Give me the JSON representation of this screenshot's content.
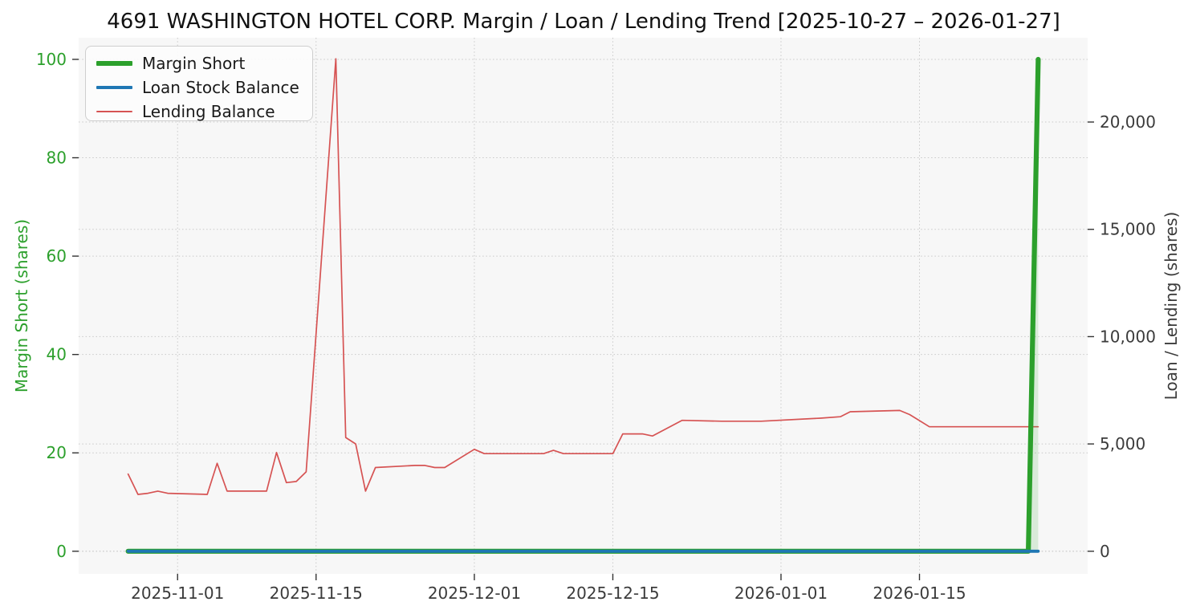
{
  "title": "4691 WASHINGTON HOTEL CORP. Margin / Loan / Lending Trend [2025-10-27 – 2026-01-27]",
  "chart_data": {
    "type": "line",
    "title": "4691 WASHINGTON HOTEL CORP. Margin / Loan / Lending Trend [2025-10-27 – 2026-01-27]",
    "date_range": {
      "start": "2025-10-27",
      "end": "2026-01-27"
    },
    "grid": "dotted gridlines on both y-axes and at x date ticks",
    "plot_background": "#f7f7f7",
    "x_domain": [
      "2025-10-22",
      "2026-02-01"
    ],
    "x_ticks": {
      "dates": [
        "2025-11-01",
        "2025-11-15",
        "2025-12-01",
        "2025-12-15",
        "2026-01-01",
        "2026-01-15"
      ],
      "labels": [
        "2025-11-01",
        "2025-11-15",
        "2025-12-01",
        "2025-12-15",
        "2026-01-01",
        "2026-01-15"
      ]
    },
    "left_axis": {
      "label": "Margin Short (shares)",
      "color": "#2ca02c",
      "range": [
        -4.6,
        104.4
      ],
      "ticks": [
        0,
        20,
        40,
        60,
        80,
        100
      ],
      "tick_labels": [
        "0",
        "20",
        "40",
        "60",
        "80",
        "100"
      ]
    },
    "right_axis": {
      "label": "Loan / Lending (shares)",
      "color": "#3b3b3b",
      "range": [
        -1054,
        23928
      ],
      "ticks": [
        0,
        5000,
        10000,
        15000,
        20000
      ],
      "tick_labels": [
        "0",
        "5,000",
        "10,000",
        "15,000",
        "20,000"
      ]
    },
    "legend": {
      "position": "upper left",
      "entries": [
        {
          "label": "Margin Short",
          "color": "#2ca02c",
          "sample_thickness": 6
        },
        {
          "label": "Loan Stock Balance",
          "color": "#1f77b4",
          "sample_thickness": 4.5
        },
        {
          "label": "Lending Balance",
          "color": "#d65353",
          "sample_thickness": 2
        }
      ]
    },
    "series": [
      {
        "name": "Lending Balance",
        "axis": "right",
        "color": "#d65353",
        "line_width": 1.7,
        "points": [
          [
            "2025-10-27",
            3600
          ],
          [
            "2025-10-28",
            2650
          ],
          [
            "2025-10-29",
            2700
          ],
          [
            "2025-10-30",
            2800
          ],
          [
            "2025-10-31",
            2700
          ],
          [
            "2025-11-04",
            2650
          ],
          [
            "2025-11-05",
            4100
          ],
          [
            "2025-11-06",
            2800
          ],
          [
            "2025-11-07",
            2800
          ],
          [
            "2025-11-10",
            2800
          ],
          [
            "2025-11-11",
            4600
          ],
          [
            "2025-11-12",
            3200
          ],
          [
            "2025-11-13",
            3250
          ],
          [
            "2025-11-14",
            3700
          ],
          [
            "2025-11-17",
            22950
          ],
          [
            "2025-11-18",
            5300
          ],
          [
            "2025-11-19",
            5000
          ],
          [
            "2025-11-20",
            2800
          ],
          [
            "2025-11-21",
            3900
          ],
          [
            "2025-11-25",
            4000
          ],
          [
            "2025-11-26",
            4000
          ],
          [
            "2025-11-27",
            3900
          ],
          [
            "2025-11-28",
            3900
          ],
          [
            "2025-12-01",
            4750
          ],
          [
            "2025-12-02",
            4550
          ],
          [
            "2025-12-05",
            4550
          ],
          [
            "2025-12-08",
            4550
          ],
          [
            "2025-12-09",
            4700
          ],
          [
            "2025-12-10",
            4550
          ],
          [
            "2025-12-15",
            4550
          ],
          [
            "2025-12-16",
            5470
          ],
          [
            "2025-12-18",
            5470
          ],
          [
            "2025-12-19",
            5370
          ],
          [
            "2025-12-22",
            6100
          ],
          [
            "2025-12-26",
            6060
          ],
          [
            "2025-12-30",
            6060
          ],
          [
            "2026-01-05",
            6200
          ],
          [
            "2026-01-07",
            6270
          ],
          [
            "2026-01-08",
            6500
          ],
          [
            "2026-01-13",
            6560
          ],
          [
            "2026-01-14",
            6370
          ],
          [
            "2026-01-16",
            5800
          ],
          [
            "2026-01-27",
            5800
          ]
        ]
      },
      {
        "name": "Margin Short",
        "axis": "left",
        "color": "#2ca02c",
        "line_width": 6.2,
        "fill_opacity": 0.15,
        "points": [
          [
            "2025-10-27",
            0
          ],
          [
            "2026-01-26",
            0
          ],
          [
            "2026-01-27",
            100
          ]
        ]
      },
      {
        "name": "Loan Stock Balance",
        "axis": "right",
        "color": "#1f77b4",
        "line_width": 3.8,
        "points": [
          [
            "2025-10-27",
            0
          ],
          [
            "2026-01-27",
            0
          ]
        ]
      }
    ]
  }
}
